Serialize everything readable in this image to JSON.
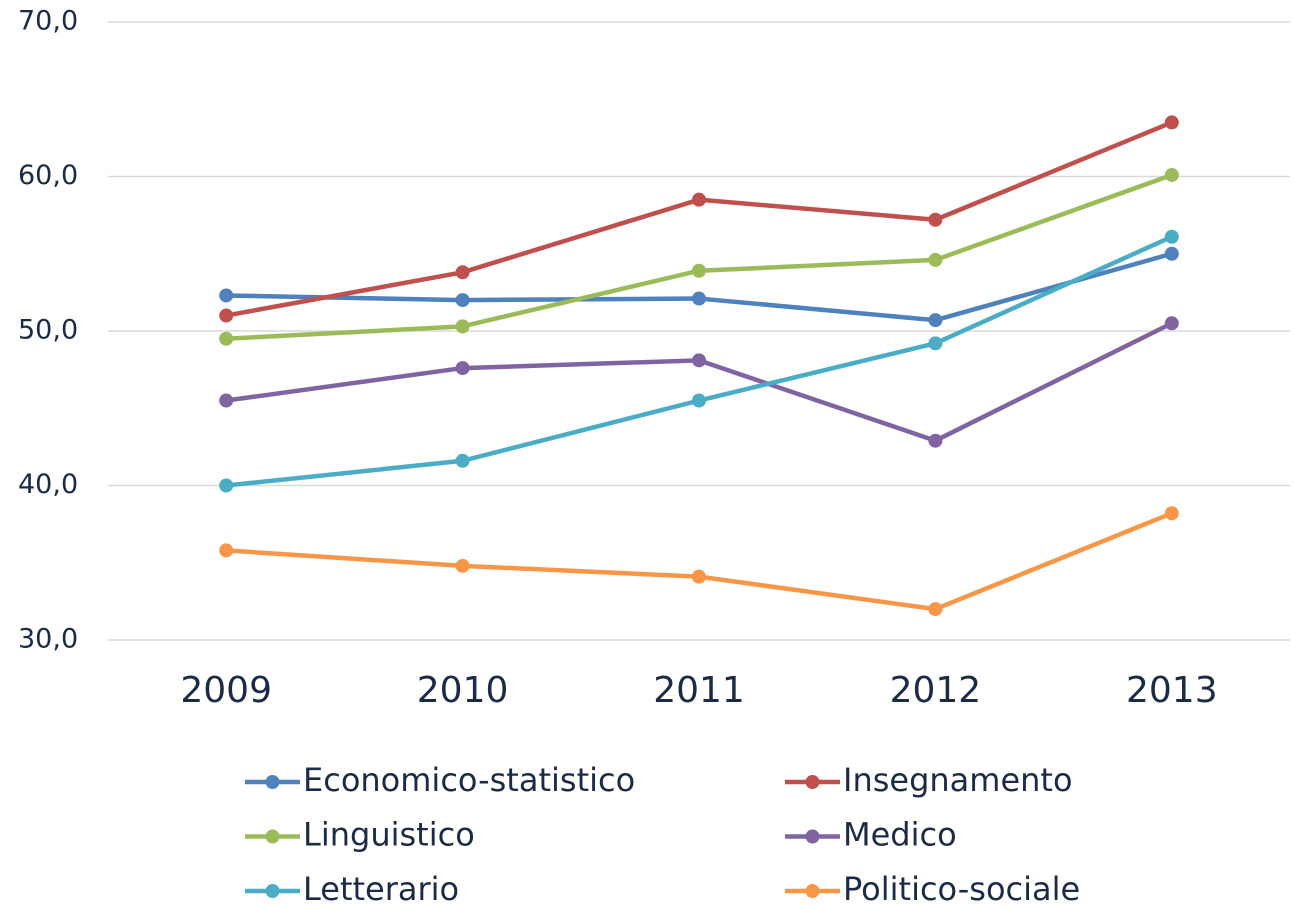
{
  "chart_data": {
    "type": "line",
    "categories": [
      "2009",
      "2010",
      "2011",
      "2012",
      "2013"
    ],
    "ylim": [
      30,
      70
    ],
    "yticks": [
      {
        "value": 30,
        "label": "30,0"
      },
      {
        "value": 40,
        "label": "40,0"
      },
      {
        "value": 50,
        "label": "50,0"
      },
      {
        "value": 60,
        "label": "60,0"
      },
      {
        "value": 70,
        "label": "70,0"
      }
    ],
    "grid": true,
    "legend": "bottom",
    "series": [
      {
        "name": "Economico-statistico",
        "color": "#4f81bd",
        "values": [
          52.3,
          52.0,
          52.1,
          50.7,
          55.0
        ]
      },
      {
        "name": "Insegnamento",
        "color": "#c0504d",
        "values": [
          51.0,
          53.8,
          58.5,
          57.2,
          63.5
        ]
      },
      {
        "name": "Linguistico",
        "color": "#9bbb59",
        "values": [
          49.5,
          50.3,
          53.9,
          54.6,
          60.1
        ]
      },
      {
        "name": "Medico",
        "color": "#8064a2",
        "values": [
          45.5,
          47.6,
          48.1,
          42.9,
          50.5
        ]
      },
      {
        "name": "Letterario",
        "color": "#4bacc6",
        "values": [
          40.0,
          41.6,
          45.5,
          49.2,
          56.1
        ]
      },
      {
        "name": "Politico-sociale",
        "color": "#f79646",
        "values": [
          35.8,
          34.8,
          34.1,
          32.0,
          38.2
        ]
      }
    ]
  }
}
